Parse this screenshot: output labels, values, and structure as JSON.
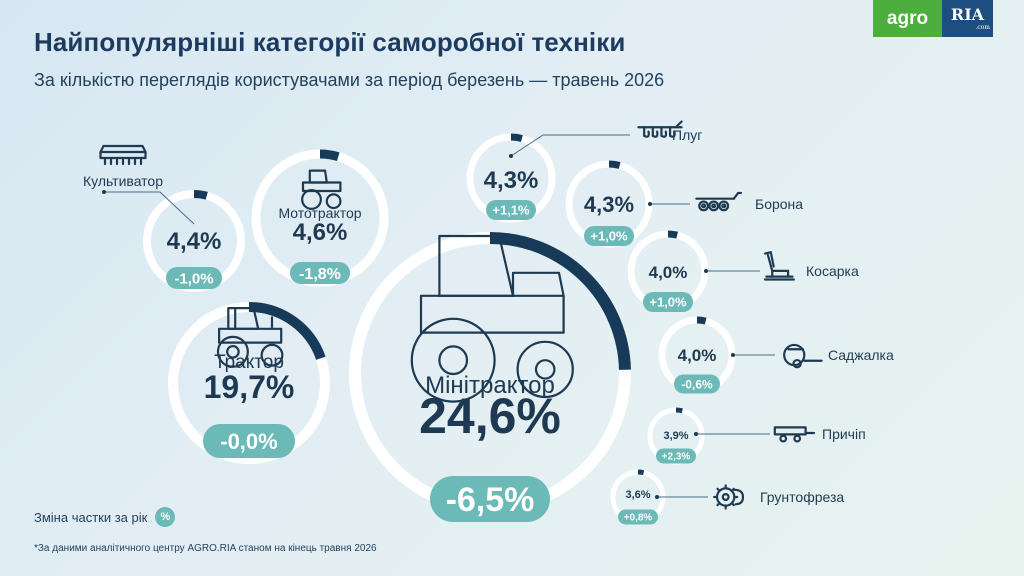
{
  "title": "Найпопулярніші категорії саморобної техніки",
  "subtitle": "За кількістю переглядів користувачами за період березень — травень 2026",
  "logo": {
    "agro": "agro",
    "ria": "RIA",
    "ria_suffix": ".com"
  },
  "legend": {
    "label": "Зміна частки за рік",
    "badge": "%"
  },
  "footnote": "*За даними аналітичного центру AGRO.RIA станом на кінець травня 2026",
  "colors": {
    "ring_bg": "#ffffff",
    "ring_fill": "#163a58",
    "badge": "#6bbab8",
    "text": "#1e3a52"
  },
  "chart_data": {
    "type": "pie",
    "title": "Найпопулярніші категорії саморобної техніки",
    "subtitle": "За кількістю переглядів користувачами за період березень — травень 2026",
    "unit": "%",
    "categories": [
      {
        "name": "Мінітрактор",
        "value": 24.6,
        "label": "24,6%",
        "change": -6.5,
        "change_label": "-6,5%",
        "icon": "minitractor-icon"
      },
      {
        "name": "Трактор",
        "value": 19.7,
        "label": "19,7%",
        "change": -0.0,
        "change_label": "-0,0%",
        "icon": "tractor-icon"
      },
      {
        "name": "Мототрактор",
        "value": 4.6,
        "label": "4,6%",
        "change": -1.8,
        "change_label": "-1,8%",
        "icon": "mototractor-icon"
      },
      {
        "name": "Культиватор",
        "value": 4.4,
        "label": "4,4%",
        "change": -1.0,
        "change_label": "-1,0%",
        "icon": "cultivator-icon"
      },
      {
        "name": "Плуг",
        "value": 4.3,
        "label": "4,3%",
        "change": 1.1,
        "change_label": "+1,1%",
        "icon": "plough-icon"
      },
      {
        "name": "Борона",
        "value": 4.3,
        "label": "4,3%",
        "change": 1.0,
        "change_label": "+1,0%",
        "icon": "harrow-icon"
      },
      {
        "name": "Косарка",
        "value": 4.0,
        "label": "4,0%",
        "change": 1.0,
        "change_label": "+1,0%",
        "icon": "mower-icon"
      },
      {
        "name": "Саджалка",
        "value": 4.0,
        "label": "4,0%",
        "change": -0.6,
        "change_label": "-0,6%",
        "icon": "planter-icon"
      },
      {
        "name": "Причіп",
        "value": 3.9,
        "label": "3,9%",
        "change": 2.3,
        "change_label": "+2,3%",
        "icon": "trailer-icon"
      },
      {
        "name": "Грунтофреза",
        "value": 3.6,
        "label": "3,6%",
        "change": 0.8,
        "change_label": "+0,8%",
        "icon": "rotary-tiller-icon"
      }
    ]
  }
}
